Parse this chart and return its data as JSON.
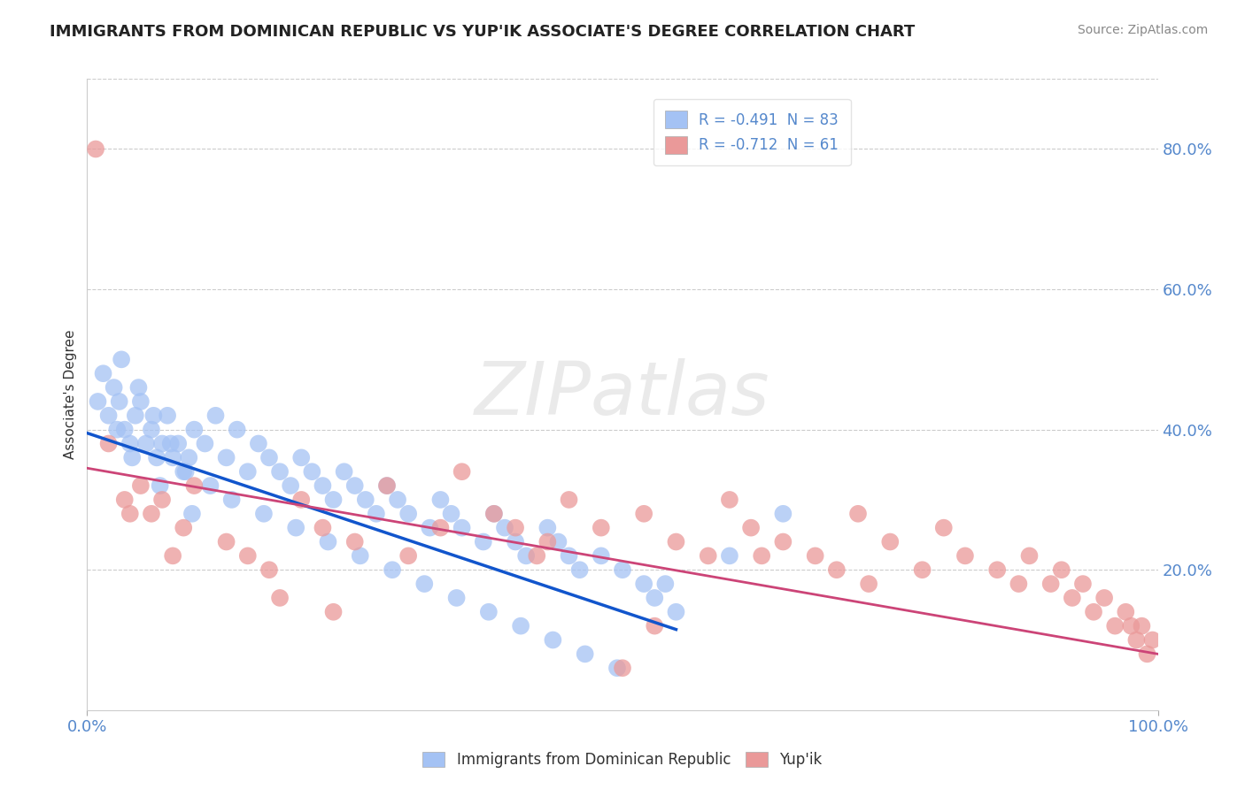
{
  "title": "IMMIGRANTS FROM DOMINICAN REPUBLIC VS YUP'IK ASSOCIATE'S DEGREE CORRELATION CHART",
  "source": "Source: ZipAtlas.com",
  "ylabel": "Associate's Degree",
  "legend_labels": [
    "Immigrants from Dominican Republic",
    "Yup'ik"
  ],
  "r_values": [
    -0.491,
    -0.712
  ],
  "n_values": [
    83,
    61
  ],
  "blue_color": "#a4c2f4",
  "pink_color": "#ea9999",
  "blue_line_color": "#1155cc",
  "pink_line_color": "#cc4477",
  "blue_line_style": "-",
  "pink_line_style": "-",
  "watermark": "ZIPatlas",
  "watermark_color": "#dddddd",
  "grid_color": "#cccccc",
  "grid_style": "--",
  "tick_color": "#5588cc",
  "title_fontsize": 13,
  "source_fontsize": 10,
  "axis_tick_fontsize": 13,
  "background_color": "#ffffff",
  "ylim_data": [
    0.0,
    0.9
  ],
  "xlim_data": [
    0.0,
    100.0
  ],
  "right_ytick_positions": [
    0.2,
    0.4,
    0.6,
    0.8
  ],
  "right_ytick_labels": [
    "20.0%",
    "40.0%",
    "60.0%",
    "80.0%"
  ],
  "xtick_positions": [
    0,
    100
  ],
  "xtick_labels": [
    "0.0%",
    "100.0%"
  ],
  "blue_trend_x": [
    0,
    55
  ],
  "blue_trend_y": [
    0.395,
    0.115
  ],
  "pink_trend_x": [
    0,
    100
  ],
  "pink_trend_y": [
    0.345,
    0.08
  ],
  "blue_x": [
    1.5,
    2.0,
    2.5,
    3.0,
    3.5,
    4.0,
    4.5,
    5.0,
    5.5,
    6.0,
    6.5,
    7.0,
    7.5,
    8.0,
    8.5,
    9.0,
    9.5,
    10.0,
    11.0,
    12.0,
    13.0,
    14.0,
    15.0,
    16.0,
    17.0,
    18.0,
    19.0,
    20.0,
    21.0,
    22.0,
    23.0,
    24.0,
    25.0,
    26.0,
    27.0,
    28.0,
    29.0,
    30.0,
    32.0,
    33.0,
    34.0,
    35.0,
    37.0,
    38.0,
    39.0,
    40.0,
    41.0,
    43.0,
    44.0,
    45.0,
    46.0,
    48.0,
    50.0,
    52.0,
    53.0,
    55.0,
    3.2,
    4.8,
    6.2,
    7.8,
    9.2,
    11.5,
    13.5,
    16.5,
    19.5,
    22.5,
    25.5,
    28.5,
    31.5,
    34.5,
    37.5,
    40.5,
    43.5,
    46.5,
    49.5,
    54.0,
    60.0,
    65.0,
    1.0,
    2.8,
    4.2,
    6.8,
    9.8
  ],
  "blue_y": [
    0.48,
    0.42,
    0.46,
    0.44,
    0.4,
    0.38,
    0.42,
    0.44,
    0.38,
    0.4,
    0.36,
    0.38,
    0.42,
    0.36,
    0.38,
    0.34,
    0.36,
    0.4,
    0.38,
    0.42,
    0.36,
    0.4,
    0.34,
    0.38,
    0.36,
    0.34,
    0.32,
    0.36,
    0.34,
    0.32,
    0.3,
    0.34,
    0.32,
    0.3,
    0.28,
    0.32,
    0.3,
    0.28,
    0.26,
    0.3,
    0.28,
    0.26,
    0.24,
    0.28,
    0.26,
    0.24,
    0.22,
    0.26,
    0.24,
    0.22,
    0.2,
    0.22,
    0.2,
    0.18,
    0.16,
    0.14,
    0.5,
    0.46,
    0.42,
    0.38,
    0.34,
    0.32,
    0.3,
    0.28,
    0.26,
    0.24,
    0.22,
    0.2,
    0.18,
    0.16,
    0.14,
    0.12,
    0.1,
    0.08,
    0.06,
    0.18,
    0.22,
    0.28,
    0.44,
    0.4,
    0.36,
    0.32,
    0.28
  ],
  "pink_x": [
    0.8,
    2.0,
    3.5,
    5.0,
    6.0,
    7.0,
    9.0,
    10.0,
    13.0,
    15.0,
    17.0,
    20.0,
    22.0,
    25.0,
    28.0,
    30.0,
    33.0,
    35.0,
    38.0,
    40.0,
    42.0,
    45.0,
    48.0,
    50.0,
    52.0,
    55.0,
    58.0,
    60.0,
    62.0,
    65.0,
    68.0,
    70.0,
    72.0,
    75.0,
    78.0,
    80.0,
    82.0,
    85.0,
    87.0,
    88.0,
    90.0,
    91.0,
    92.0,
    93.0,
    94.0,
    95.0,
    96.0,
    97.0,
    97.5,
    98.0,
    98.5,
    99.0,
    99.5,
    4.0,
    8.0,
    18.0,
    23.0,
    43.0,
    53.0,
    63.0,
    73.0
  ],
  "pink_y": [
    0.8,
    0.38,
    0.3,
    0.32,
    0.28,
    0.3,
    0.26,
    0.32,
    0.24,
    0.22,
    0.2,
    0.3,
    0.26,
    0.24,
    0.32,
    0.22,
    0.26,
    0.34,
    0.28,
    0.26,
    0.22,
    0.3,
    0.26,
    0.06,
    0.28,
    0.24,
    0.22,
    0.3,
    0.26,
    0.24,
    0.22,
    0.2,
    0.28,
    0.24,
    0.2,
    0.26,
    0.22,
    0.2,
    0.18,
    0.22,
    0.18,
    0.2,
    0.16,
    0.18,
    0.14,
    0.16,
    0.12,
    0.14,
    0.12,
    0.1,
    0.12,
    0.08,
    0.1,
    0.28,
    0.22,
    0.16,
    0.14,
    0.24,
    0.12,
    0.22,
    0.18
  ]
}
